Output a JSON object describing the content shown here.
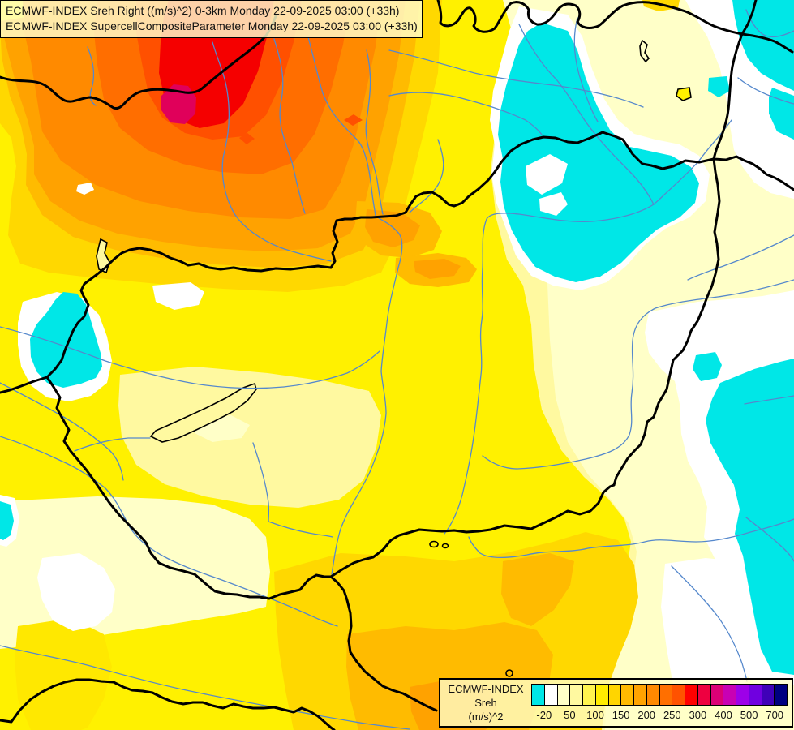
{
  "titles": {
    "line1": "ECMWF-INDEX Sreh Right ((m/s)^2) 0-3km Monday 22-09-2025 03:00 (+33h)",
    "line2": "ECMWF-INDEX SupercellCompositeParameter Monday 22-09-2025 03:00 (+33h)"
  },
  "legend": {
    "title": "ECMWF-INDEX",
    "parameter": "Sreh",
    "unit": "(m/s)^2",
    "swatches": [
      "#00E7E7",
      "#FFFFFF",
      "#FFFFC8",
      "#FFF9A0",
      "#FFF44F",
      "#FFEC00",
      "#FFD500",
      "#FFBA00",
      "#FFA300",
      "#FF8900",
      "#FF6F00",
      "#FF5200",
      "#FF0000",
      "#EE0040",
      "#DB0076",
      "#C800B4",
      "#9D00E8",
      "#7000E0",
      "#3F00B8",
      "#000080"
    ],
    "ticks": [
      {
        "label": "-20",
        "boundary": 1
      },
      {
        "label": "50",
        "boundary": 3
      },
      {
        "label": "100",
        "boundary": 5
      },
      {
        "label": "150",
        "boundary": 7
      },
      {
        "label": "200",
        "boundary": 9
      },
      {
        "label": "250",
        "boundary": 11
      },
      {
        "label": "300",
        "boundary": 13
      },
      {
        "label": "400",
        "boundary": 15
      },
      {
        "label": "500",
        "boundary": 17
      },
      {
        "label": "700",
        "boundary": 19
      }
    ]
  },
  "map": {
    "palette": {
      "base": "#FFF9A0",
      "cream": "#FFFFC8",
      "pale": "#FFF9A0",
      "yellow": "#FFF100",
      "deepyellow": "#FFE800",
      "golden": "#FFD800",
      "amber": "#FFBB00",
      "orange": "#FFA200",
      "dkorange": "#FF8A00",
      "vivid": "#FF6E00",
      "scarlet": "#FF5000",
      "red": "#F50000",
      "crimson": "#E0005A",
      "white": "#FFFFFF",
      "cyan": "#00E7E7",
      "river": "#5588CC",
      "border": "#000000"
    }
  }
}
